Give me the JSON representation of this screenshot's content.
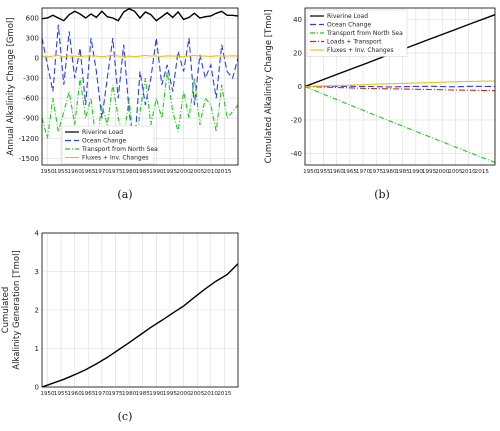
{
  "charts": [
    {
      "caption": "(a)",
      "chart_data": {
        "type": "line",
        "title": "",
        "xlabel": "",
        "ylabel": "Annual Alkalinity Change [Gmol]",
        "xlim": [
          1948,
          2020
        ],
        "ylim": [
          -1600,
          750
        ],
        "xticks": [
          1950,
          1955,
          1960,
          1965,
          1970,
          1975,
          1980,
          1985,
          1990,
          1995,
          2000,
          2005,
          2010,
          2015
        ],
        "yticks": [
          600,
          300,
          0,
          -300,
          -600,
          -900,
          -1200,
          -1500
        ],
        "grid": true,
        "legend_position": "lower-left",
        "x": [
          1948,
          1950,
          1952,
          1954,
          1956,
          1958,
          1960,
          1962,
          1964,
          1966,
          1968,
          1970,
          1972,
          1974,
          1976,
          1978,
          1980,
          1982,
          1984,
          1986,
          1988,
          1990,
          1992,
          1994,
          1996,
          1998,
          2000,
          2002,
          2004,
          2006,
          2008,
          2010,
          2012,
          2014,
          2016,
          2018,
          2020
        ],
        "series": [
          {
            "name": "Riverine Load",
            "color": "#000000",
            "dash": "",
            "values": [
              590,
              600,
              640,
              600,
              560,
              650,
              700,
              660,
              600,
              660,
              610,
              700,
              620,
              600,
              560,
              690,
              740,
              700,
              600,
              690,
              650,
              560,
              620,
              680,
              610,
              690,
              580,
              610,
              670,
              600,
              620,
              630,
              670,
              700,
              640,
              640,
              630
            ]
          },
          {
            "name": "Ocean Change",
            "color": "#2a3fe0",
            "dash": "6,3",
            "values": [
              300,
              -100,
              -500,
              500,
              -400,
              400,
              -300,
              150,
              -700,
              300,
              -200,
              -900,
              -300,
              300,
              -600,
              200,
              -800,
              -1300,
              -200,
              -700,
              -300,
              300,
              -400,
              -100,
              -500,
              100,
              -200,
              300,
              -700,
              50,
              -300,
              -100,
              -600,
              200,
              -200,
              -300,
              0
            ]
          },
          {
            "name": "Transport from North Sea",
            "color": "#22c41e",
            "dash": "5,2,1,2",
            "values": [
              -900,
              -1200,
              -600,
              -1100,
              -800,
              -500,
              -1000,
              -300,
              -900,
              -600,
              -1300,
              -700,
              -1000,
              -400,
              -900,
              -1200,
              -600,
              -1500,
              -800,
              -300,
              -1000,
              -600,
              -900,
              -200,
              -800,
              -1100,
              -500,
              -900,
              -300,
              -1000,
              -600,
              -700,
              -1100,
              -400,
              -900,
              -800,
              -700
            ]
          },
          {
            "name": "Fluxes + Inv. Changes",
            "color": "#e8c21a",
            "dash": "",
            "values": [
              30,
              20,
              30,
              40,
              20,
              30,
              30,
              25,
              30,
              35,
              30,
              20,
              30,
              40,
              30,
              25,
              30,
              20,
              30,
              40,
              30,
              30,
              25,
              35,
              30,
              30,
              20,
              30,
              40,
              30,
              30,
              25,
              35,
              30,
              30,
              35,
              30
            ]
          }
        ]
      }
    },
    {
      "caption": "(b)",
      "chart_data": {
        "type": "line",
        "title": "",
        "xlabel": "",
        "ylabel": "Cumulated Alkalinity Change [Tmol]",
        "xlim": [
          1948,
          2020
        ],
        "ylim": [
          -47,
          47
        ],
        "xticks": [
          1950,
          1955,
          1960,
          1965,
          1970,
          1975,
          1980,
          1985,
          1990,
          1995,
          2000,
          2005,
          2010,
          2015
        ],
        "yticks": [
          40,
          20,
          0,
          -20,
          -40
        ],
        "grid": true,
        "legend_position": "top-left",
        "x": [
          1948,
          1956,
          1964,
          1972,
          1980,
          1988,
          1996,
          2004,
          2012,
          2020
        ],
        "series": [
          {
            "name": "Riverine Load",
            "color": "#000000",
            "dash": "",
            "values": [
              0,
              4.8,
              9.6,
              14.3,
              19.2,
              24.0,
              28.8,
              33.5,
              38.3,
              43.0
            ]
          },
          {
            "name": "Ocean Change",
            "color": "#2a3fe0",
            "dash": "6,3",
            "values": [
              0,
              0.2,
              0.1,
              0.0,
              -0.3,
              0.0,
              0.1,
              -0.2,
              0.1,
              0.0
            ]
          },
          {
            "name": "Transport from North Sea",
            "color": "#22c41e",
            "dash": "5,2,1,2",
            "values": [
              0,
              -5.2,
              -10.4,
              -15.5,
              -20.6,
              -25.6,
              -30.6,
              -35.6,
              -40.6,
              -45.5
            ]
          },
          {
            "name": "Loads + Transport",
            "color": "#d62020",
            "dash": "6,2,1,2",
            "values": [
              0,
              -0.4,
              -0.8,
              -1.2,
              -1.4,
              -1.6,
              -1.8,
              -2.1,
              -2.3,
              -2.5
            ]
          },
          {
            "name": "Fluxes + Inv. Changes",
            "color": "#e8c21a",
            "dash": "",
            "values": [
              0,
              0.4,
              0.8,
              1.2,
              1.6,
              2.0,
              2.4,
              2.8,
              3.1,
              3.3
            ]
          }
        ]
      }
    },
    {
      "caption": "(c)",
      "chart_data": {
        "type": "line",
        "title": "",
        "xlabel": "",
        "ylabel": "Cumulated Alkalinity Generation [Tmol]",
        "ylabel_lines": [
          "Cumulated",
          "Alkalinity Generation [Tmol]"
        ],
        "xlim": [
          1948,
          2020
        ],
        "ylim": [
          0,
          4
        ],
        "xticks": [
          1950,
          1955,
          1960,
          1965,
          1970,
          1975,
          1980,
          1985,
          1990,
          1995,
          2000,
          2005,
          2010,
          2015
        ],
        "yticks": [
          4,
          3,
          2,
          1,
          0
        ],
        "grid": true,
        "x": [
          1948,
          1952,
          1956,
          1960,
          1964,
          1968,
          1972,
          1976,
          1980,
          1984,
          1988,
          1992,
          1996,
          2000,
          2004,
          2008,
          2012,
          2016,
          2020
        ],
        "series": [
          {
            "name": "",
            "color": "#000000",
            "dash": "",
            "values": [
              0.0,
              0.1,
              0.2,
              0.32,
              0.45,
              0.6,
              0.77,
              0.96,
              1.15,
              1.35,
              1.55,
              1.73,
              1.92,
              2.1,
              2.33,
              2.55,
              2.75,
              2.92,
              3.2
            ]
          }
        ]
      }
    }
  ]
}
